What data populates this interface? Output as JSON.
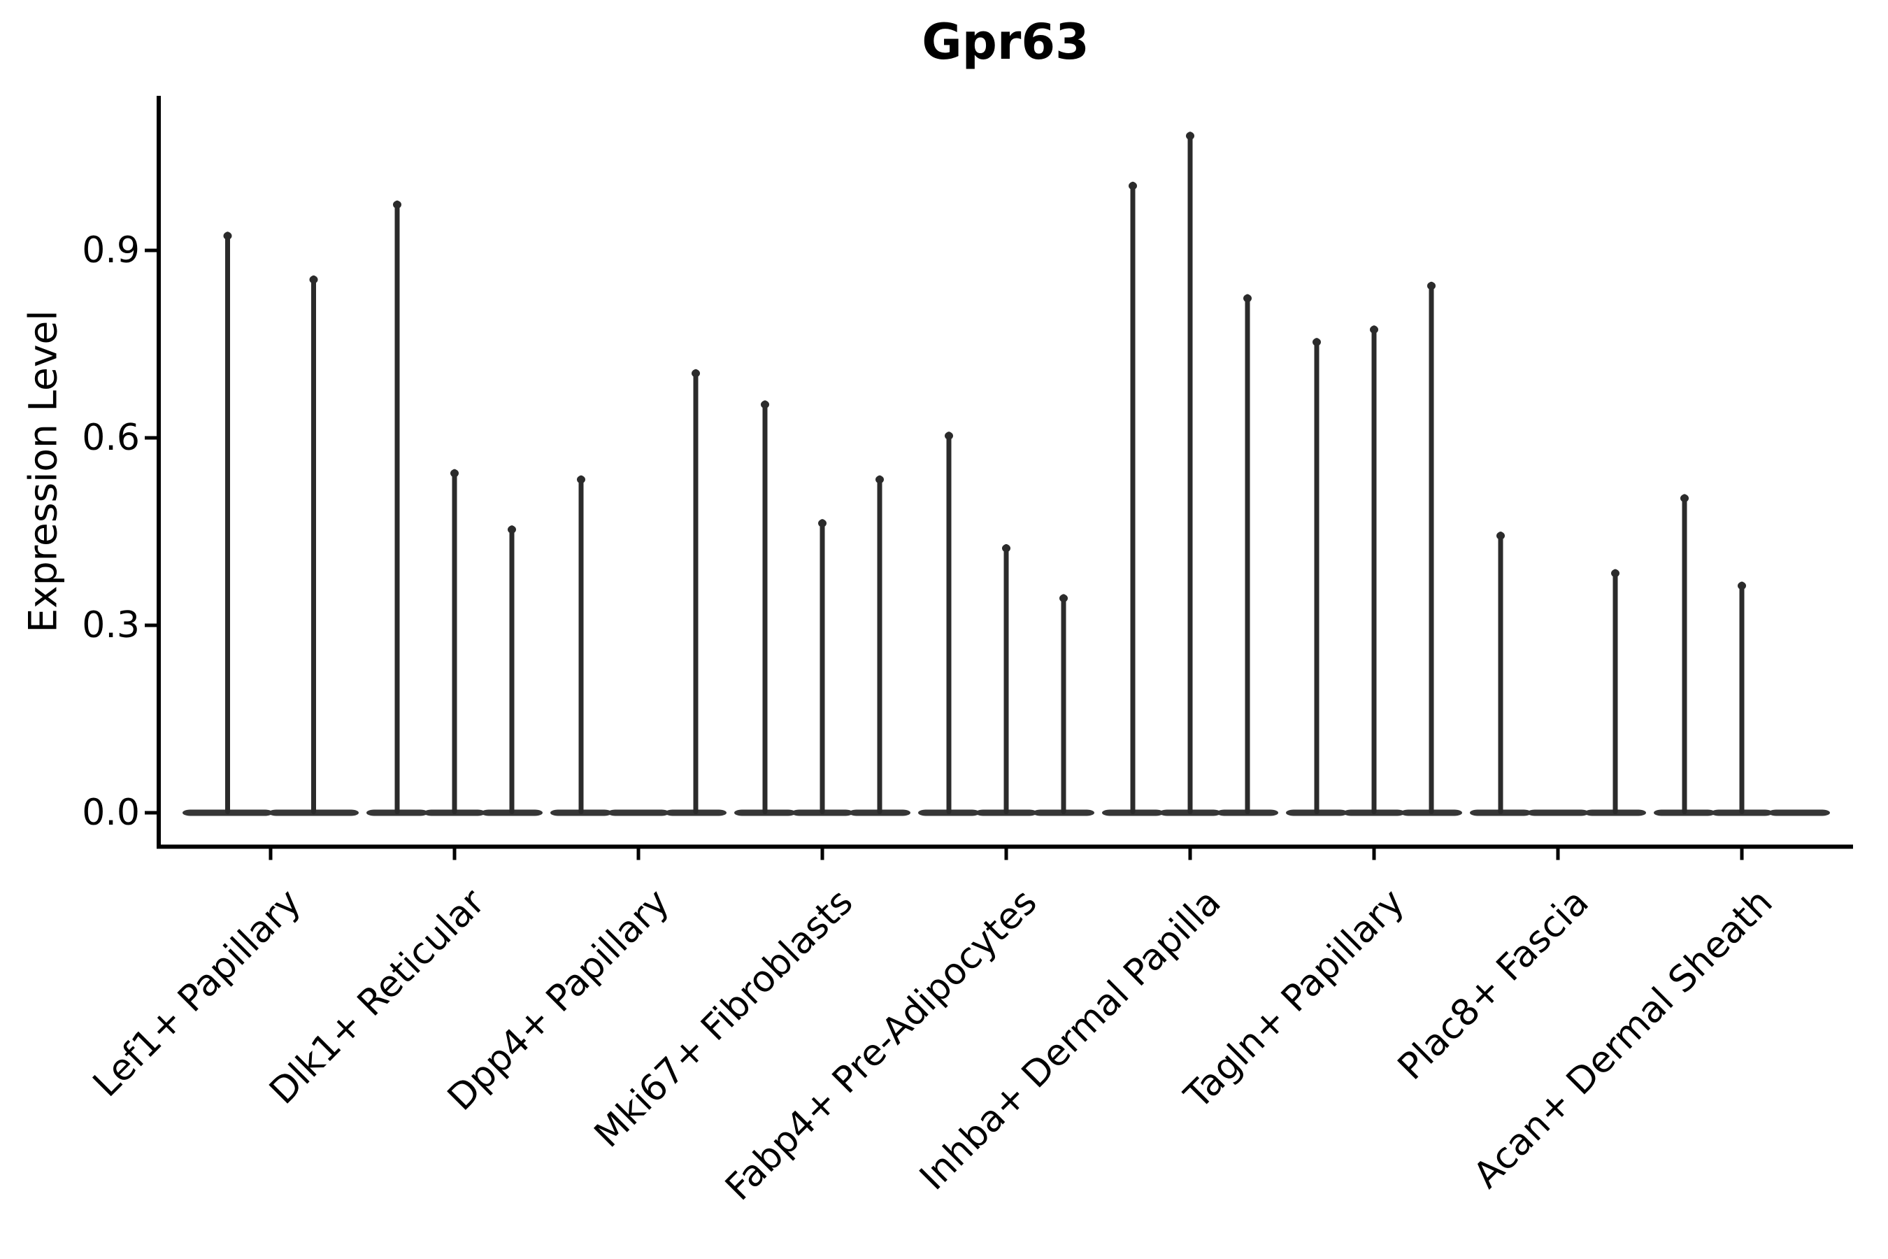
{
  "title": "Gpr63",
  "y_axis": {
    "label": "Expression Level",
    "tick_labels": [
      "0.0",
      "0.3",
      "0.6",
      "0.9"
    ]
  },
  "colors": {
    "background": "#ffffff",
    "axis": "#000000",
    "text": "#000000",
    "violin_spike": "#2b2b2b",
    "violin_base": "#363636"
  },
  "chart_data": {
    "type": "violin",
    "title": "Gpr63",
    "xlabel": "",
    "ylabel": "Expression Level",
    "ylim": [
      -0.055,
      1.145
    ],
    "yticks": [
      0.0,
      0.3,
      0.6,
      0.9
    ],
    "grid": false,
    "legend": "none",
    "note": "Split violin plot: each category holds 2-3 ultra-thin violins; value is the top of each expression spike; null means a violin with only zero-expression cells (flat base, no spike).",
    "categories": [
      "Lef1+ Papillary",
      "Dlk1+ Reticular",
      "Dpp4+ Papillary",
      "Mki67+ Fibroblasts",
      "Fabp4+ Pre-Adipocytes",
      "Inhba+ Dermal Papilla",
      "Tagln+ Papillary",
      "Plac8+ Fascia",
      "Acan+ Dermal Sheath"
    ],
    "groups": [
      {
        "label": "Lef1+ Papillary",
        "spike_maxima": [
          0.93,
          0.86
        ]
      },
      {
        "label": "Dlk1+ Reticular",
        "spike_maxima": [
          0.98,
          0.55,
          0.46
        ]
      },
      {
        "label": "Dpp4+ Papillary",
        "spike_maxima": [
          0.54,
          null,
          0.71
        ]
      },
      {
        "label": "Mki67+ Fibroblasts",
        "spike_maxima": [
          0.66,
          0.47,
          0.54
        ]
      },
      {
        "label": "Fabp4+ Pre-Adipocytes",
        "spike_maxima": [
          0.61,
          0.43,
          0.35
        ]
      },
      {
        "label": "Inhba+ Dermal Papilla",
        "spike_maxima": [
          1.01,
          1.09,
          0.83
        ]
      },
      {
        "label": "Tagln+ Papillary",
        "spike_maxima": [
          0.76,
          0.78,
          0.85
        ]
      },
      {
        "label": "Plac8+ Fascia",
        "spike_maxima": [
          0.45,
          null,
          0.39
        ]
      },
      {
        "label": "Acan+ Dermal Sheath",
        "spike_maxima": [
          0.51,
          0.37,
          null
        ]
      }
    ]
  }
}
